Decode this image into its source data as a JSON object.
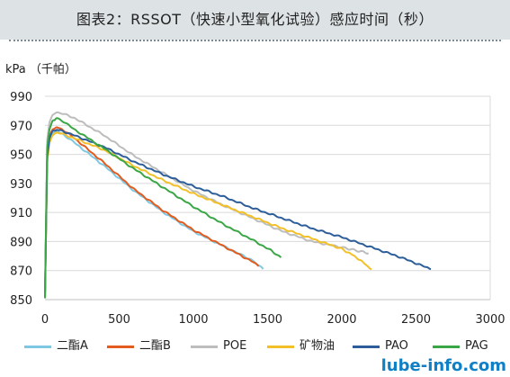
{
  "title": "图表2：RSSOT（快速小型氧化试验）感应时间（秒）",
  "unit_label": "kPa （千帕）",
  "watermark": "lube-info.com",
  "chart_data": {
    "type": "line",
    "ylabel": "kPa （千帕）",
    "xlim": [
      0,
      3000
    ],
    "ylim": [
      850,
      990
    ],
    "x_ticks": [
      0,
      500,
      1000,
      1500,
      2000,
      2500,
      3000
    ],
    "y_ticks": [
      850,
      870,
      890,
      910,
      930,
      950,
      970,
      990
    ],
    "grid": "horizontal",
    "legend_position": "bottom",
    "series": [
      {
        "name": "二酯A",
        "color": "#7ec8e3",
        "points": [
          [
            0,
            851
          ],
          [
            15,
            948
          ],
          [
            30,
            960
          ],
          [
            50,
            964
          ],
          [
            80,
            966
          ],
          [
            120,
            964
          ],
          [
            200,
            958
          ],
          [
            400,
            942
          ],
          [
            600,
            925
          ],
          [
            800,
            910
          ],
          [
            1000,
            897
          ],
          [
            1200,
            887
          ],
          [
            1400,
            877
          ],
          [
            1470,
            871
          ]
        ]
      },
      {
        "name": "二酯B",
        "color": "#e35b1e",
        "points": [
          [
            0,
            851
          ],
          [
            15,
            950
          ],
          [
            30,
            962
          ],
          [
            50,
            967
          ],
          [
            80,
            969
          ],
          [
            120,
            967
          ],
          [
            200,
            961
          ],
          [
            400,
            944
          ],
          [
            600,
            926
          ],
          [
            800,
            911
          ],
          [
            1000,
            898
          ],
          [
            1200,
            887
          ],
          [
            1400,
            876
          ],
          [
            1440,
            873
          ]
        ]
      },
      {
        "name": "POE",
        "color": "#bdbdbd",
        "points": [
          [
            0,
            851
          ],
          [
            15,
            960
          ],
          [
            30,
            972
          ],
          [
            50,
            977
          ],
          [
            80,
            979
          ],
          [
            120,
            978
          ],
          [
            200,
            975
          ],
          [
            400,
            963
          ],
          [
            600,
            949
          ],
          [
            800,
            937
          ],
          [
            1000,
            925
          ],
          [
            1200,
            915
          ],
          [
            1400,
            906
          ],
          [
            1600,
            897
          ],
          [
            1800,
            890
          ],
          [
            2000,
            886
          ],
          [
            2180,
            882
          ]
        ]
      },
      {
        "name": "矿物油",
        "color": "#f2c029",
        "points": [
          [
            0,
            851
          ],
          [
            15,
            945
          ],
          [
            30,
            958
          ],
          [
            50,
            963
          ],
          [
            80,
            965
          ],
          [
            120,
            964
          ],
          [
            200,
            961
          ],
          [
            400,
            953
          ],
          [
            600,
            942
          ],
          [
            800,
            932
          ],
          [
            1000,
            923
          ],
          [
            1200,
            915
          ],
          [
            1400,
            907
          ],
          [
            1600,
            899
          ],
          [
            1800,
            892
          ],
          [
            2000,
            885
          ],
          [
            2100,
            879
          ],
          [
            2200,
            871
          ]
        ]
      },
      {
        "name": "PAO",
        "color": "#2e5e99",
        "points": [
          [
            0,
            851
          ],
          [
            15,
            948
          ],
          [
            30,
            961
          ],
          [
            50,
            966
          ],
          [
            80,
            967
          ],
          [
            120,
            966
          ],
          [
            200,
            963
          ],
          [
            400,
            955
          ],
          [
            600,
            945
          ],
          [
            800,
            936
          ],
          [
            1000,
            928
          ],
          [
            1200,
            921
          ],
          [
            1400,
            913
          ],
          [
            1600,
            906
          ],
          [
            1800,
            899
          ],
          [
            2000,
            893
          ],
          [
            2200,
            886
          ],
          [
            2400,
            879
          ],
          [
            2600,
            871
          ]
        ]
      },
      {
        "name": "PAG",
        "color": "#3aa645",
        "points": [
          [
            0,
            851
          ],
          [
            15,
            955
          ],
          [
            30,
            967
          ],
          [
            50,
            973
          ],
          [
            80,
            975
          ],
          [
            120,
            973
          ],
          [
            200,
            967
          ],
          [
            400,
            954
          ],
          [
            600,
            940
          ],
          [
            800,
            927
          ],
          [
            1000,
            914
          ],
          [
            1200,
            902
          ],
          [
            1400,
            891
          ],
          [
            1520,
            884
          ],
          [
            1590,
            879
          ]
        ]
      }
    ]
  }
}
